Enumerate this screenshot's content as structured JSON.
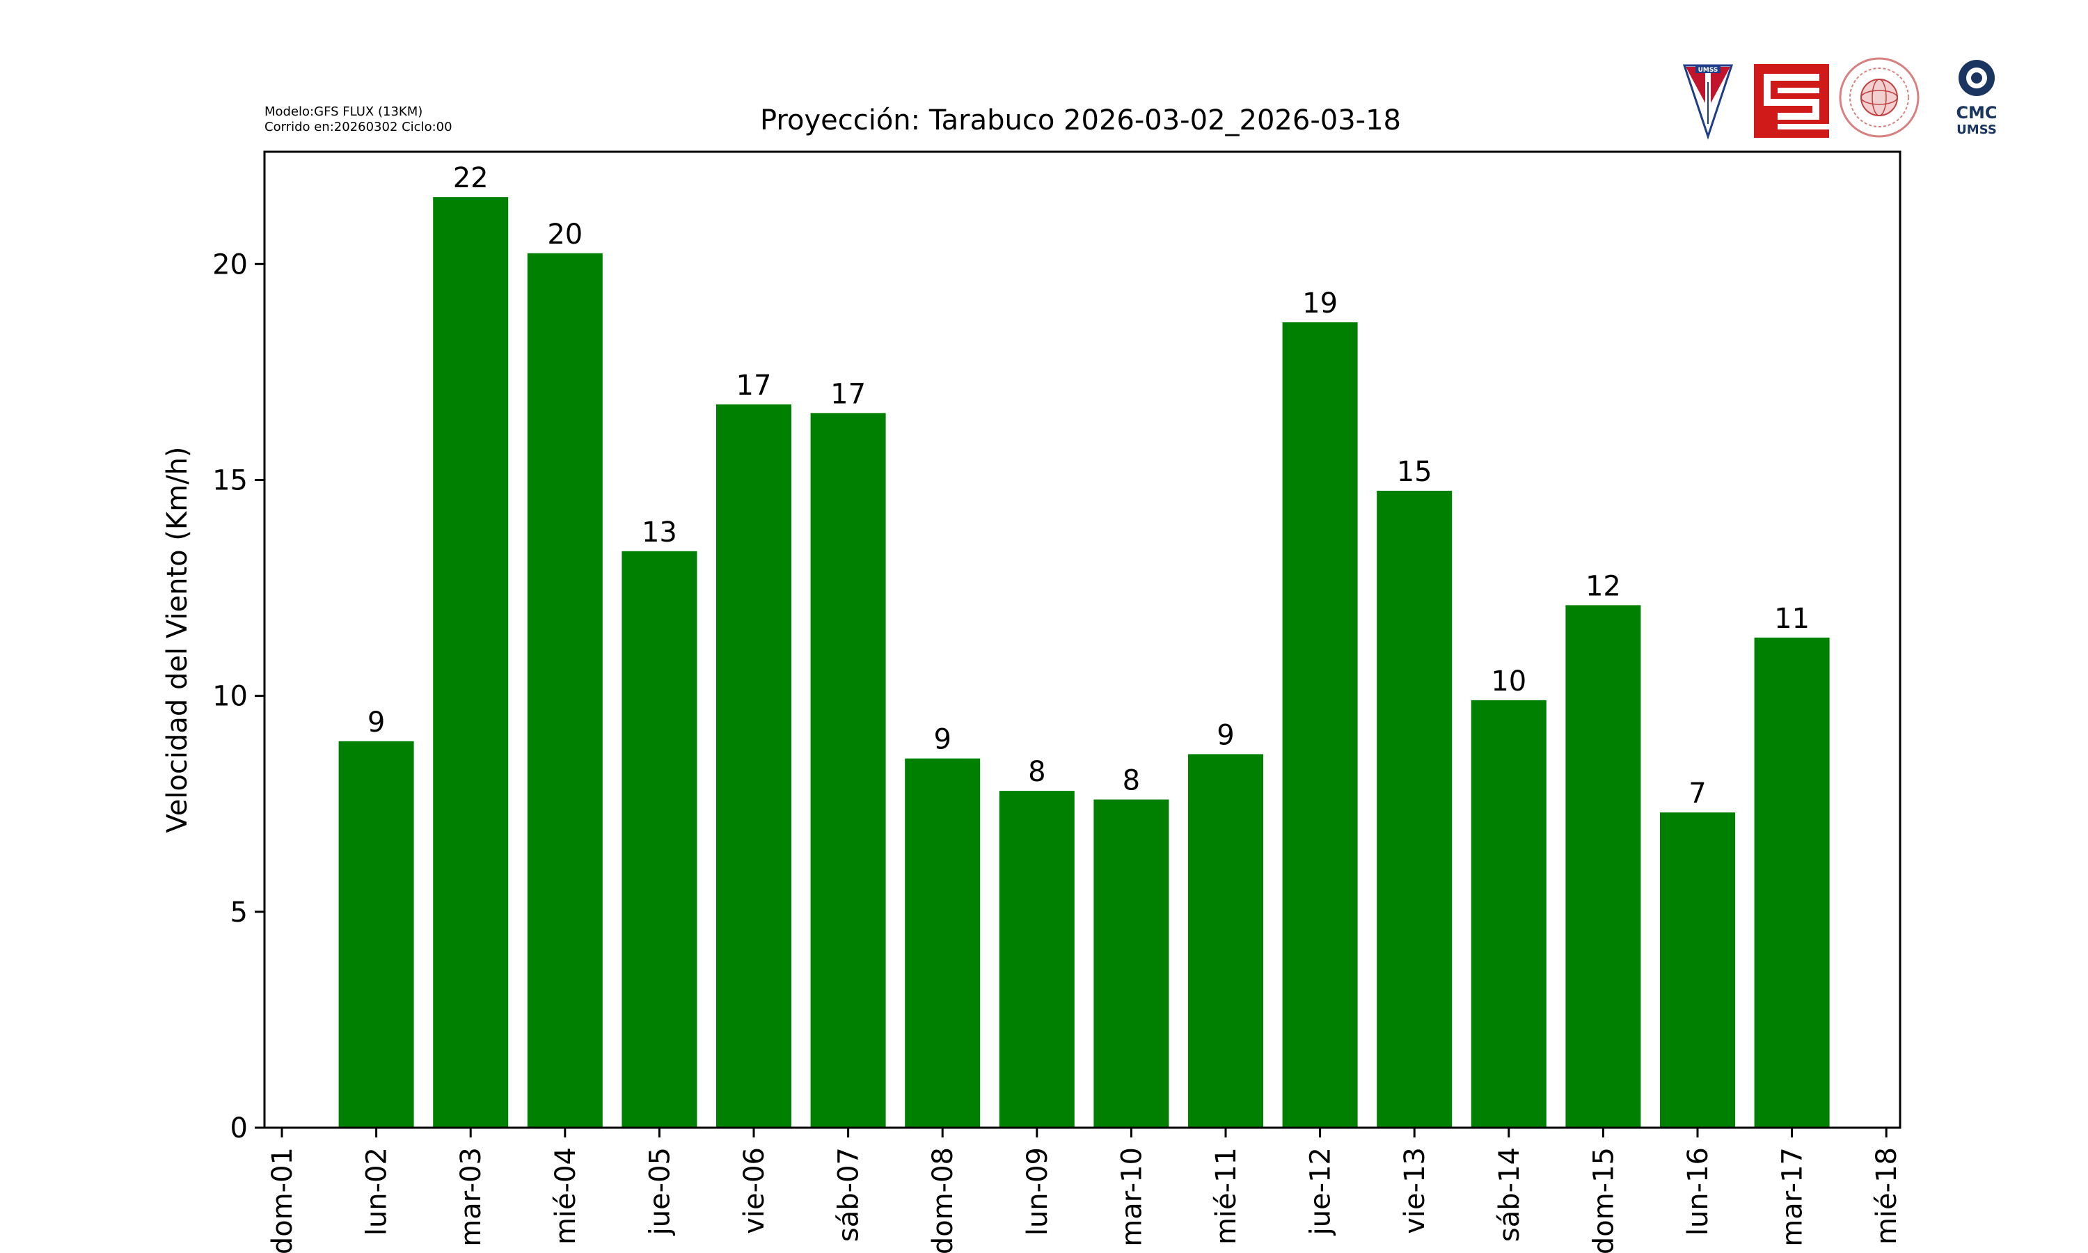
{
  "header": {
    "model_line": "Modelo:GFS FLUX (13KM)",
    "run_line": "Corrido en:20260302 Ciclo:00",
    "logo_umss_text": "UMSS",
    "logo_cmc_line1": "CMC",
    "logo_cmc_line2": "UMSS"
  },
  "chart_data": {
    "type": "bar",
    "title": "Proyección: Tarabuco  2026-03-02_2026-03-18",
    "xlabel": "",
    "ylabel": "Velocidad del Viento (Km/h)",
    "ylim": [
      0,
      22.6
    ],
    "yticks": [
      0,
      5,
      10,
      15,
      20
    ],
    "xticks": [
      "dom-01",
      "lun-02",
      "mar-03",
      "mié-04",
      "jue-05",
      "vie-06",
      "sáb-07",
      "dom-08",
      "lun-09",
      "mar-10",
      "mié-11",
      "jue-12",
      "vie-13",
      "sáb-14",
      "dom-15",
      "lun-16",
      "mar-17",
      "mié-18"
    ],
    "categories": [
      "lun-02",
      "mar-03",
      "mié-04",
      "jue-05",
      "vie-06",
      "sáb-07",
      "dom-08",
      "lun-09",
      "mar-10",
      "mié-11",
      "jue-12",
      "vie-13",
      "sáb-14",
      "dom-15",
      "lun-16",
      "mar-17"
    ],
    "values": [
      8.95,
      21.55,
      20.25,
      13.35,
      16.75,
      16.55,
      8.55,
      7.8,
      7.6,
      8.65,
      18.65,
      14.75,
      9.9,
      12.1,
      7.3,
      11.35
    ],
    "data_labels": [
      "9",
      "22",
      "20",
      "13",
      "17",
      "17",
      "9",
      "8",
      "8",
      "9",
      "19",
      "15",
      "10",
      "12",
      "7",
      "11"
    ],
    "bar_color": "#008000",
    "grid": false
  }
}
